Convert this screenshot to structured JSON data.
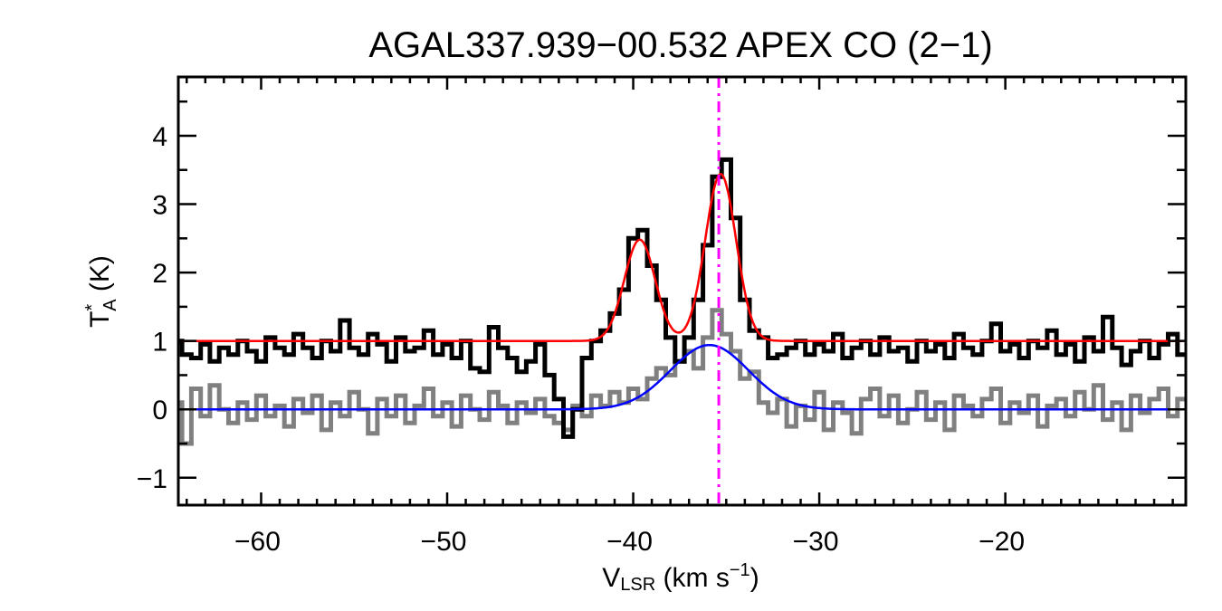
{
  "chart_data": {
    "type": "line",
    "title": "AGAL337.939−00.532  APEX CO (2−1)",
    "xlabel": {
      "main": "V",
      "sub": "LSR",
      "unit_pre": " (km s",
      "sup": "−1",
      "unit_post": ")"
    },
    "ylabel": {
      "main": "T",
      "sup": "*",
      "sub": "A",
      "unit": " (K)"
    },
    "xlim": [
      -64.45,
      -10.3
    ],
    "ylim": [
      -1.4,
      4.86
    ],
    "xticks": [
      -60,
      -50,
      -40,
      -30,
      -20
    ],
    "xtick_labels": [
      "−60",
      "−50",
      "−40",
      "−30",
      "−20"
    ],
    "yticks": [
      -1,
      0,
      1,
      2,
      3,
      4
    ],
    "ytick_labels": [
      "−1",
      "0",
      "1",
      "2",
      "3",
      "4"
    ],
    "x_minor_step": 1,
    "y_minor_step": 0.5,
    "grid": false,
    "series": [
      {
        "style": "histogram",
        "color": "#000000",
        "x_start": -64.5,
        "x_step": 0.5,
        "values": [
          1.0,
          0.8,
          0.75,
          0.95,
          0.7,
          0.9,
          0.8,
          1.0,
          0.85,
          0.7,
          1.05,
          0.9,
          0.8,
          1.1,
          0.9,
          0.75,
          1.0,
          0.85,
          1.3,
          0.9,
          0.8,
          1.1,
          0.95,
          0.7,
          1.05,
          0.85,
          0.9,
          1.15,
          0.8,
          0.95,
          0.75,
          1.0,
          0.6,
          0.55,
          1.2,
          0.9,
          0.75,
          0.55,
          0.7,
          0.95,
          0.5,
          0.15,
          -0.4,
          0.0,
          0.75,
          1.0,
          1.15,
          1.4,
          1.75,
          2.5,
          2.62,
          2.1,
          1.6,
          1.05,
          0.7,
          1.05,
          1.6,
          2.4,
          3.4,
          3.65,
          2.8,
          1.6,
          1.15,
          1.05,
          0.75,
          0.8,
          0.9,
          1.0,
          0.8,
          0.95,
          0.85,
          1.1,
          0.75,
          0.9,
          1.0,
          0.8,
          1.05,
          0.85,
          0.9,
          0.7,
          1.0,
          0.85,
          0.95,
          0.75,
          1.1,
          0.9,
          0.8,
          1.0,
          1.25,
          0.85,
          0.95,
          0.75,
          1.0,
          0.9,
          1.15,
          0.8,
          0.95,
          0.7,
          1.05,
          0.85,
          1.35,
          0.9,
          0.65,
          0.85,
          1.0,
          0.75,
          0.95,
          1.1,
          0.8
        ]
      },
      {
        "style": "histogram",
        "color": "#808080",
        "x_start": -64.5,
        "x_step": 0.5,
        "values": [
          0.1,
          -0.5,
          0.3,
          -0.1,
          0.35,
          0.0,
          -0.2,
          0.1,
          -0.15,
          0.2,
          -0.1,
          0.05,
          -0.25,
          0.15,
          -0.05,
          0.2,
          -0.3,
          0.1,
          -0.1,
          0.25,
          0.0,
          -0.35,
          0.15,
          -0.1,
          0.2,
          -0.2,
          0.05,
          0.3,
          -0.1,
          0.1,
          -0.25,
          0.2,
          0.0,
          -0.15,
          0.25,
          0.05,
          -0.2,
          0.1,
          -0.05,
          0.15,
          -0.1,
          -0.2,
          -0.3,
          0.05,
          -0.1,
          0.2,
          0.05,
          0.25,
          0.1,
          0.3,
          0.15,
          0.45,
          0.6,
          0.5,
          0.7,
          0.85,
          0.6,
          1.05,
          1.45,
          1.1,
          0.85,
          0.45,
          0.55,
          0.1,
          -0.05,
          0.15,
          -0.25,
          0.05,
          -0.15,
          0.25,
          -0.3,
          0.1,
          -0.05,
          -0.35,
          0.15,
          0.3,
          -0.1,
          0.2,
          -0.2,
          0.0,
          0.25,
          -0.15,
          0.1,
          -0.3,
          0.2,
          0.05,
          -0.1,
          0.15,
          0.3,
          -0.2,
          0.1,
          -0.05,
          0.2,
          -0.25,
          0.05,
          0.15,
          -0.1,
          0.25,
          0.0,
          0.35,
          -0.15,
          0.1,
          -0.3,
          0.2,
          -0.05,
          0.15,
          0.3,
          -0.1,
          0.15
        ]
      },
      {
        "style": "gaussian-fit",
        "color": "#ff0000",
        "baseline": 1.0,
        "components": [
          {
            "center": -39.65,
            "amplitude": 1.48,
            "sigma": 0.83
          },
          {
            "center": -35.3,
            "amplitude": 2.44,
            "sigma": 0.83
          }
        ]
      },
      {
        "style": "gaussian-fit",
        "color": "#0000ff",
        "baseline": 0.0,
        "components": [
          {
            "center": -35.9,
            "amplitude": 0.94,
            "sigma": 2.1
          }
        ]
      }
    ],
    "vline": {
      "x": -35.4,
      "color": "#ff00ff",
      "style": "dash-dot"
    }
  }
}
